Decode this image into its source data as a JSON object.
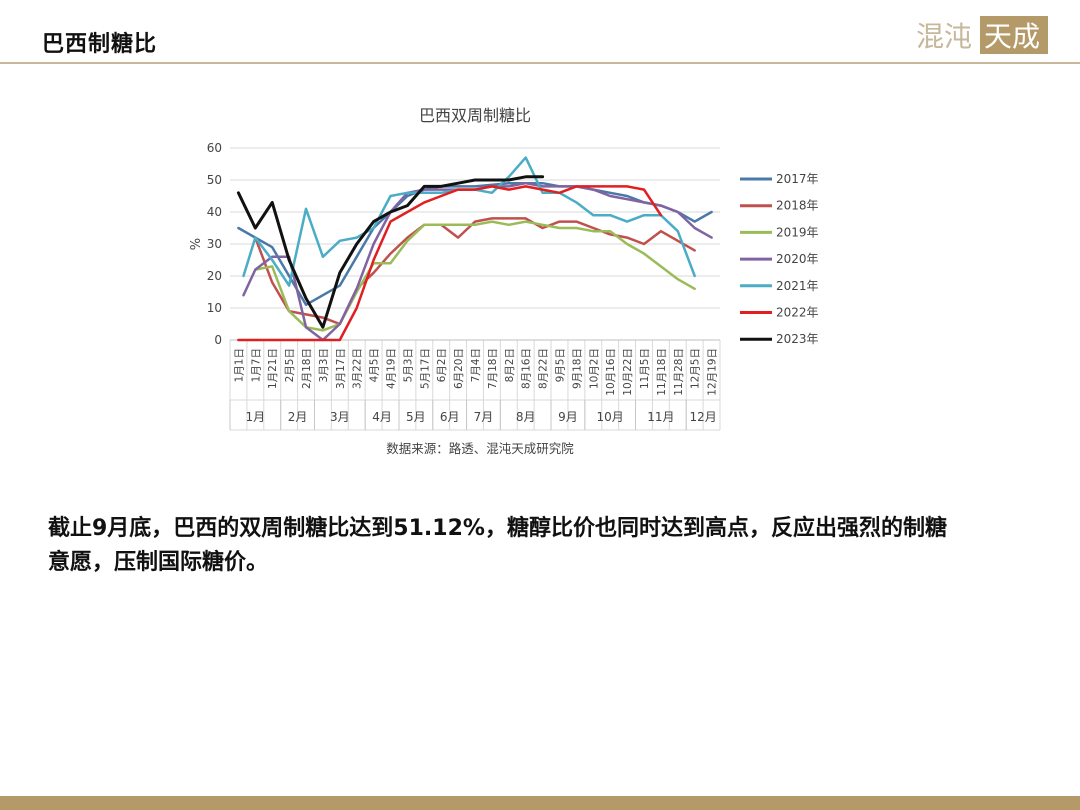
{
  "header": {
    "title": "巴西制糖比"
  },
  "logo": {
    "text_left": "混沌",
    "text_right": "天成"
  },
  "source_note": "数据来源：路透、混沌天成研究院",
  "body_text": "截止9月底，巴西的双周制糖比达到51.12%，糖醇比价也同时达到高点，反应出强烈的制糖意愿，压制国际糖价。",
  "colors": {
    "accent": "#b49a69",
    "rule": "#c7b79b"
  },
  "chart_data": {
    "type": "line",
    "title": "巴西双周制糖比",
    "ylabel": "%",
    "xlabel": "",
    "ylim": [
      0,
      60
    ],
    "yticks": [
      0,
      10,
      20,
      30,
      40,
      50,
      60
    ],
    "grid": true,
    "legend_position": "right",
    "x_tick_labels": [
      "1月1日",
      "1月7日",
      "1月21日",
      "2月5日",
      "2月18日",
      "3月3日",
      "3月17日",
      "3月22日",
      "4月5日",
      "4月19日",
      "5月3日",
      "5月17日",
      "6月2日",
      "6月20日",
      "7月4日",
      "7月18日",
      "8月2日",
      "8月16日",
      "8月22日",
      "9月5日",
      "9月18日",
      "10月2日",
      "10月16日",
      "10月22日",
      "11月5日",
      "11月18日",
      "11月28日",
      "12月5日",
      "12月19日"
    ],
    "month_groups": [
      {
        "label": "1月",
        "start": 0,
        "end": 3
      },
      {
        "label": "2月",
        "start": 3,
        "end": 5
      },
      {
        "label": "3月",
        "start": 5,
        "end": 8
      },
      {
        "label": "4月",
        "start": 8,
        "end": 10
      },
      {
        "label": "5月",
        "start": 10,
        "end": 12
      },
      {
        "label": "6月",
        "start": 12,
        "end": 14
      },
      {
        "label": "7月",
        "start": 14,
        "end": 16
      },
      {
        "label": "8月",
        "start": 16,
        "end": 19
      },
      {
        "label": "9月",
        "start": 19,
        "end": 21
      },
      {
        "label": "10月",
        "start": 21,
        "end": 24
      },
      {
        "label": "11月",
        "start": 24,
        "end": 27
      },
      {
        "label": "12月",
        "start": 27,
        "end": 29
      }
    ],
    "series": [
      {
        "name": "2017年",
        "color": "#4a78a8",
        "points": [
          [
            0,
            35
          ],
          [
            2,
            29
          ],
          [
            3,
            20
          ],
          [
            4,
            11
          ],
          [
            6,
            17
          ],
          [
            8,
            35
          ],
          [
            9,
            40
          ],
          [
            10,
            45
          ],
          [
            11,
            47
          ],
          [
            12,
            48
          ],
          [
            14,
            48
          ],
          [
            16,
            49
          ],
          [
            18,
            49
          ],
          [
            19,
            48
          ],
          [
            20,
            48
          ],
          [
            21,
            47
          ],
          [
            22,
            46
          ],
          [
            23,
            45
          ],
          [
            24,
            43
          ],
          [
            25,
            42
          ],
          [
            26,
            40
          ],
          [
            27,
            37
          ],
          [
            28,
            40
          ]
        ]
      },
      {
        "name": "2018年",
        "color": "#c0504d",
        "points": [
          [
            1,
            32
          ],
          [
            2,
            18
          ],
          [
            3,
            9
          ],
          [
            4,
            8
          ],
          [
            5,
            7
          ],
          [
            6,
            5
          ],
          [
            7,
            16
          ],
          [
            8,
            21
          ],
          [
            9,
            27
          ],
          [
            10,
            32
          ],
          [
            11,
            36
          ],
          [
            12,
            36
          ],
          [
            13,
            32
          ],
          [
            14,
            37
          ],
          [
            15,
            38
          ],
          [
            17,
            38
          ],
          [
            18,
            35
          ],
          [
            19,
            37
          ],
          [
            20,
            37
          ],
          [
            21,
            35
          ],
          [
            22,
            33
          ],
          [
            23,
            32
          ],
          [
            24,
            30
          ],
          [
            25,
            34
          ],
          [
            26,
            31
          ],
          [
            27,
            28
          ]
        ]
      },
      {
        "name": "2019年",
        "color": "#9bbb59",
        "points": [
          [
            1,
            22
          ],
          [
            2,
            23
          ],
          [
            3,
            9
          ],
          [
            4,
            4
          ],
          [
            5,
            3
          ],
          [
            6,
            5
          ],
          [
            7,
            15
          ],
          [
            8,
            24
          ],
          [
            9,
            24
          ],
          [
            10,
            31
          ],
          [
            11,
            36
          ],
          [
            12,
            36
          ],
          [
            13,
            36
          ],
          [
            14,
            36
          ],
          [
            15,
            37
          ],
          [
            16,
            36
          ],
          [
            17,
            37
          ],
          [
            18,
            36
          ],
          [
            19,
            35
          ],
          [
            20,
            35
          ],
          [
            21,
            34
          ],
          [
            22,
            34
          ],
          [
            23,
            30
          ],
          [
            24,
            27
          ],
          [
            25,
            23
          ],
          [
            26,
            19
          ],
          [
            27,
            16
          ]
        ]
      },
      {
        "name": "2020年",
        "color": "#8064a2",
        "points": [
          [
            0.3,
            14
          ],
          [
            1,
            22
          ],
          [
            2,
            26
          ],
          [
            3,
            26
          ],
          [
            4,
            4
          ],
          [
            5,
            0
          ],
          [
            6,
            5
          ],
          [
            7,
            16
          ],
          [
            8,
            30
          ],
          [
            9,
            40
          ],
          [
            10,
            46
          ],
          [
            11,
            47
          ],
          [
            12,
            47
          ],
          [
            13,
            47
          ],
          [
            14,
            47
          ],
          [
            15,
            48
          ],
          [
            16,
            48
          ],
          [
            17,
            49
          ],
          [
            18,
            48
          ],
          [
            19,
            48
          ],
          [
            20,
            48
          ],
          [
            21,
            47
          ],
          [
            22,
            45
          ],
          [
            23,
            44
          ],
          [
            24,
            43
          ],
          [
            25,
            42
          ],
          [
            26,
            40
          ],
          [
            27,
            35
          ],
          [
            28,
            32
          ]
        ]
      },
      {
        "name": "2021年",
        "color": "#4bacc6",
        "points": [
          [
            0.3,
            20
          ],
          [
            1,
            32
          ],
          [
            2,
            25
          ],
          [
            3,
            17
          ],
          [
            4,
            41
          ],
          [
            5,
            26
          ],
          [
            6,
            31
          ],
          [
            7,
            32
          ],
          [
            8,
            35
          ],
          [
            9,
            45
          ],
          [
            10,
            46
          ],
          [
            11,
            46
          ],
          [
            12,
            46
          ],
          [
            13,
            47
          ],
          [
            14,
            47
          ],
          [
            15,
            46
          ],
          [
            16,
            51
          ],
          [
            17,
            57
          ],
          [
            18,
            46
          ],
          [
            19,
            46
          ],
          [
            20,
            43
          ],
          [
            21,
            39
          ],
          [
            22,
            39
          ],
          [
            23,
            37
          ],
          [
            24,
            39
          ],
          [
            25,
            39
          ],
          [
            26,
            34
          ],
          [
            27,
            20
          ]
        ]
      },
      {
        "name": "2022年",
        "color": "#e02020",
        "points": [
          [
            0,
            0
          ],
          [
            3,
            0
          ],
          [
            6,
            0
          ],
          [
            7,
            10
          ],
          [
            8,
            25
          ],
          [
            9,
            37
          ],
          [
            10,
            40
          ],
          [
            11,
            43
          ],
          [
            12,
            45
          ],
          [
            13,
            47
          ],
          [
            14,
            47
          ],
          [
            15,
            48
          ],
          [
            16,
            47
          ],
          [
            17,
            48
          ],
          [
            18,
            47
          ],
          [
            19,
            46
          ],
          [
            20,
            48
          ],
          [
            21,
            48
          ],
          [
            22,
            48
          ],
          [
            23,
            48
          ],
          [
            24,
            47
          ],
          [
            25,
            39
          ]
        ]
      },
      {
        "name": "2023年",
        "color": "#111111",
        "points": [
          [
            0,
            46
          ],
          [
            1,
            35
          ],
          [
            2,
            43
          ],
          [
            3,
            25
          ],
          [
            4,
            13
          ],
          [
            5,
            4
          ],
          [
            6,
            21
          ],
          [
            7,
            30
          ],
          [
            8,
            37
          ],
          [
            9,
            40
          ],
          [
            10,
            42
          ],
          [
            11,
            48
          ],
          [
            12,
            48
          ],
          [
            13,
            49
          ],
          [
            14,
            50
          ],
          [
            15,
            50
          ],
          [
            16,
            50
          ],
          [
            17,
            51
          ],
          [
            18,
            51
          ]
        ]
      }
    ]
  }
}
